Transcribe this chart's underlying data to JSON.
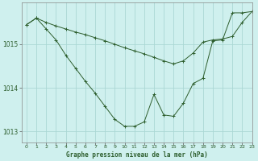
{
  "title": "Graphe pression niveau de la mer (hPa)",
  "bg_color": "#cff0ee",
  "grid_color": "#aad8d4",
  "line_color": "#2d5e2d",
  "xlim": [
    -0.5,
    23
  ],
  "ylim": [
    1012.75,
    1015.95
  ],
  "yticks": [
    1013,
    1014,
    1015
  ],
  "xticks": [
    0,
    1,
    2,
    3,
    4,
    5,
    6,
    7,
    8,
    9,
    10,
    11,
    12,
    13,
    14,
    15,
    16,
    17,
    18,
    19,
    20,
    21,
    22,
    23
  ],
  "series1_x": [
    0,
    1,
    2,
    3,
    4,
    5,
    6,
    7,
    8,
    9,
    10,
    11,
    12,
    13,
    14,
    15,
    16,
    17,
    18,
    19,
    20,
    21,
    22,
    23
  ],
  "series1_y": [
    1015.45,
    1015.6,
    1015.5,
    1015.42,
    1015.35,
    1015.28,
    1015.22,
    1015.15,
    1015.08,
    1015.0,
    1014.92,
    1014.85,
    1014.78,
    1014.7,
    1014.62,
    1014.55,
    1014.62,
    1014.8,
    1015.05,
    1015.1,
    1015.12,
    1015.18,
    1015.5,
    1015.75
  ],
  "series2_x": [
    0,
    1,
    2,
    3,
    4,
    5,
    6,
    7,
    8,
    9,
    10,
    11,
    12,
    13,
    14,
    15,
    16,
    17,
    18,
    19,
    20,
    21,
    22,
    23
  ],
  "series2_y": [
    1015.45,
    1015.6,
    1015.35,
    1015.1,
    1014.75,
    1014.45,
    1014.15,
    1013.88,
    1013.58,
    1013.28,
    1013.12,
    1013.12,
    1013.22,
    1013.85,
    1013.38,
    1013.35,
    1013.65,
    1014.1,
    1014.22,
    1015.08,
    1015.1,
    1015.72,
    1015.72,
    1015.75
  ]
}
